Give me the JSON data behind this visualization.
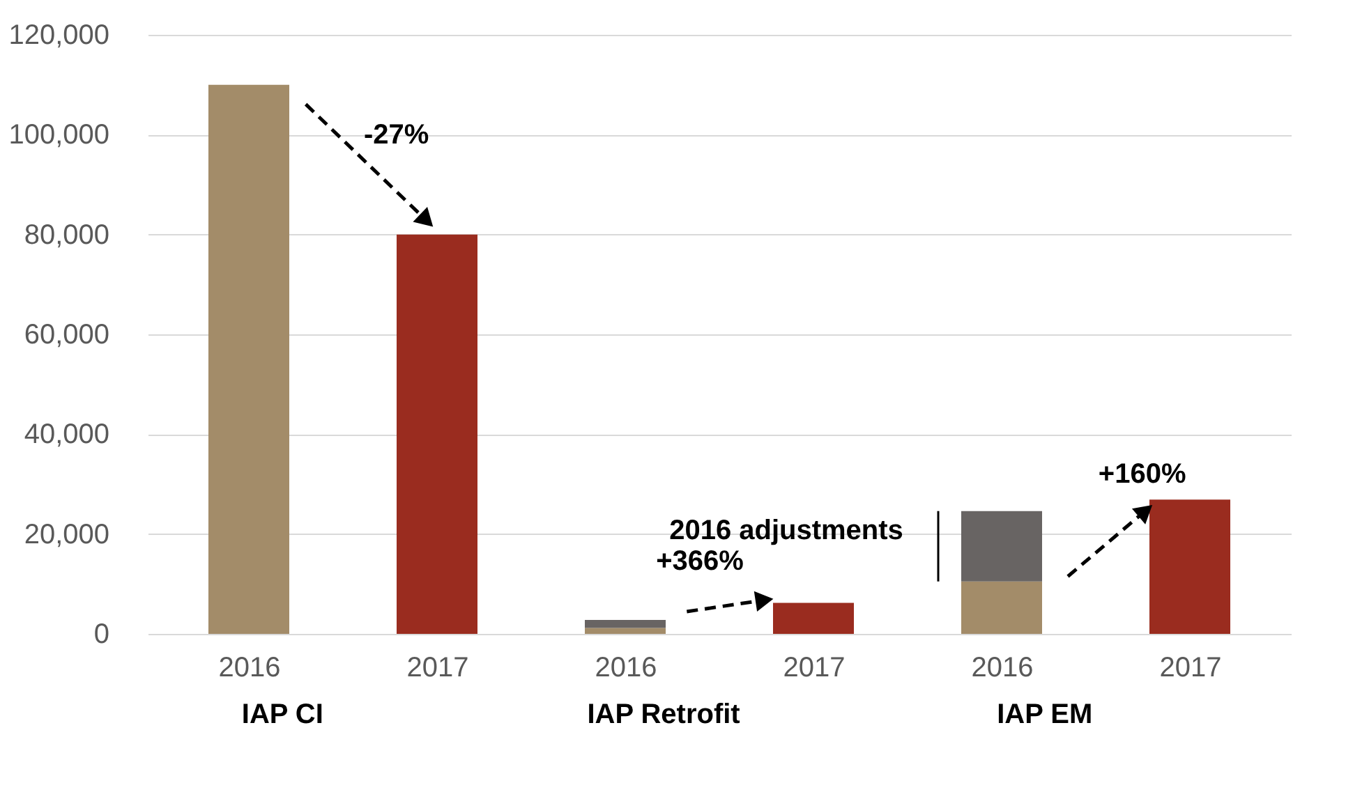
{
  "chart_data": {
    "type": "bar",
    "stacked": true,
    "categories": [
      "2016",
      "2017",
      "2016",
      "2017",
      "2016",
      "2017"
    ],
    "series": [
      {
        "color": "#a38c69",
        "values": [
          110000,
          null,
          1200,
          null,
          10500,
          null
        ]
      },
      {
        "name": "2016 adjustments",
        "color": "#686463",
        "values": [
          null,
          null,
          1600,
          null,
          14100,
          null
        ]
      },
      {
        "color": "#9a2c1f",
        "values": [
          null,
          80000,
          null,
          6200,
          null,
          26900
        ]
      }
    ],
    "ylim": [
      0,
      120000
    ],
    "yticks": [
      {
        "value": 0,
        "label": "0"
      },
      {
        "value": 20000,
        "label": "20,000"
      },
      {
        "value": 40000,
        "label": "40,000"
      },
      {
        "value": 60000,
        "label": "60,000"
      },
      {
        "value": 80000,
        "label": "80,000"
      },
      {
        "value": 100000,
        "label": "100,000"
      },
      {
        "value": 120000,
        "label": "120,000"
      }
    ],
    "grid": "y",
    "annotations": [
      "-27%",
      "+366%",
      "+160%",
      "IAP CI",
      "IAP Retrofit",
      "IAP EM"
    ]
  }
}
